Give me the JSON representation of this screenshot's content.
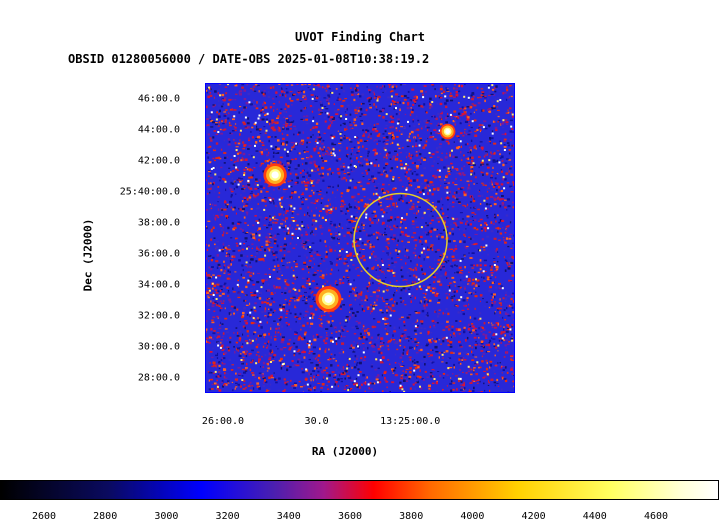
{
  "title": "UVOT Finding Chart",
  "subtitle": "OBSID 01280056000 / DATE-OBS 2025-01-08T10:38:19.2",
  "axes": {
    "xlabel": "RA (J2000)",
    "ylabel": "Dec (J2000)",
    "yticks": [
      {
        "label": "46:00.0",
        "arcmin": 46
      },
      {
        "label": "44:00.0",
        "arcmin": 44
      },
      {
        "label": "42:00.0",
        "arcmin": 42
      },
      {
        "label": "25:40:00.0",
        "arcmin": 40
      },
      {
        "label": "38:00.0",
        "arcmin": 38
      },
      {
        "label": "36:00.0",
        "arcmin": 36
      },
      {
        "label": "34:00.0",
        "arcmin": 34
      },
      {
        "label": "32:00.0",
        "arcmin": 32
      },
      {
        "label": "30:00.0",
        "arcmin": 30
      },
      {
        "label": "28:00.0",
        "arcmin": 28
      }
    ],
    "xticks": [
      {
        "label": "26:00.0",
        "sec": 60
      },
      {
        "label": "30.0",
        "sec": 30
      },
      {
        "label": "13:25:00.0",
        "sec": 0
      }
    ]
  },
  "image": {
    "background": "#2828d8",
    "stars": [
      {
        "ra_sec": 43.3,
        "dec_arcmin": 41.1,
        "size": 9
      },
      {
        "ra_sec": 26.2,
        "dec_arcmin": 33.1,
        "size": 10
      },
      {
        "ra_sec": -12.0,
        "dec_arcmin": 43.9,
        "size": 6
      }
    ],
    "target_circle": {
      "ra_sec": 3.1,
      "dec_arcmin": 36.9,
      "radius_arcmin": 3.0,
      "color": "#e8d028"
    }
  },
  "colorbar": {
    "ticks": [
      "2600",
      "2800",
      "3000",
      "3200",
      "3400",
      "3600",
      "3800",
      "4000",
      "4200",
      "4400",
      "4600"
    ]
  }
}
